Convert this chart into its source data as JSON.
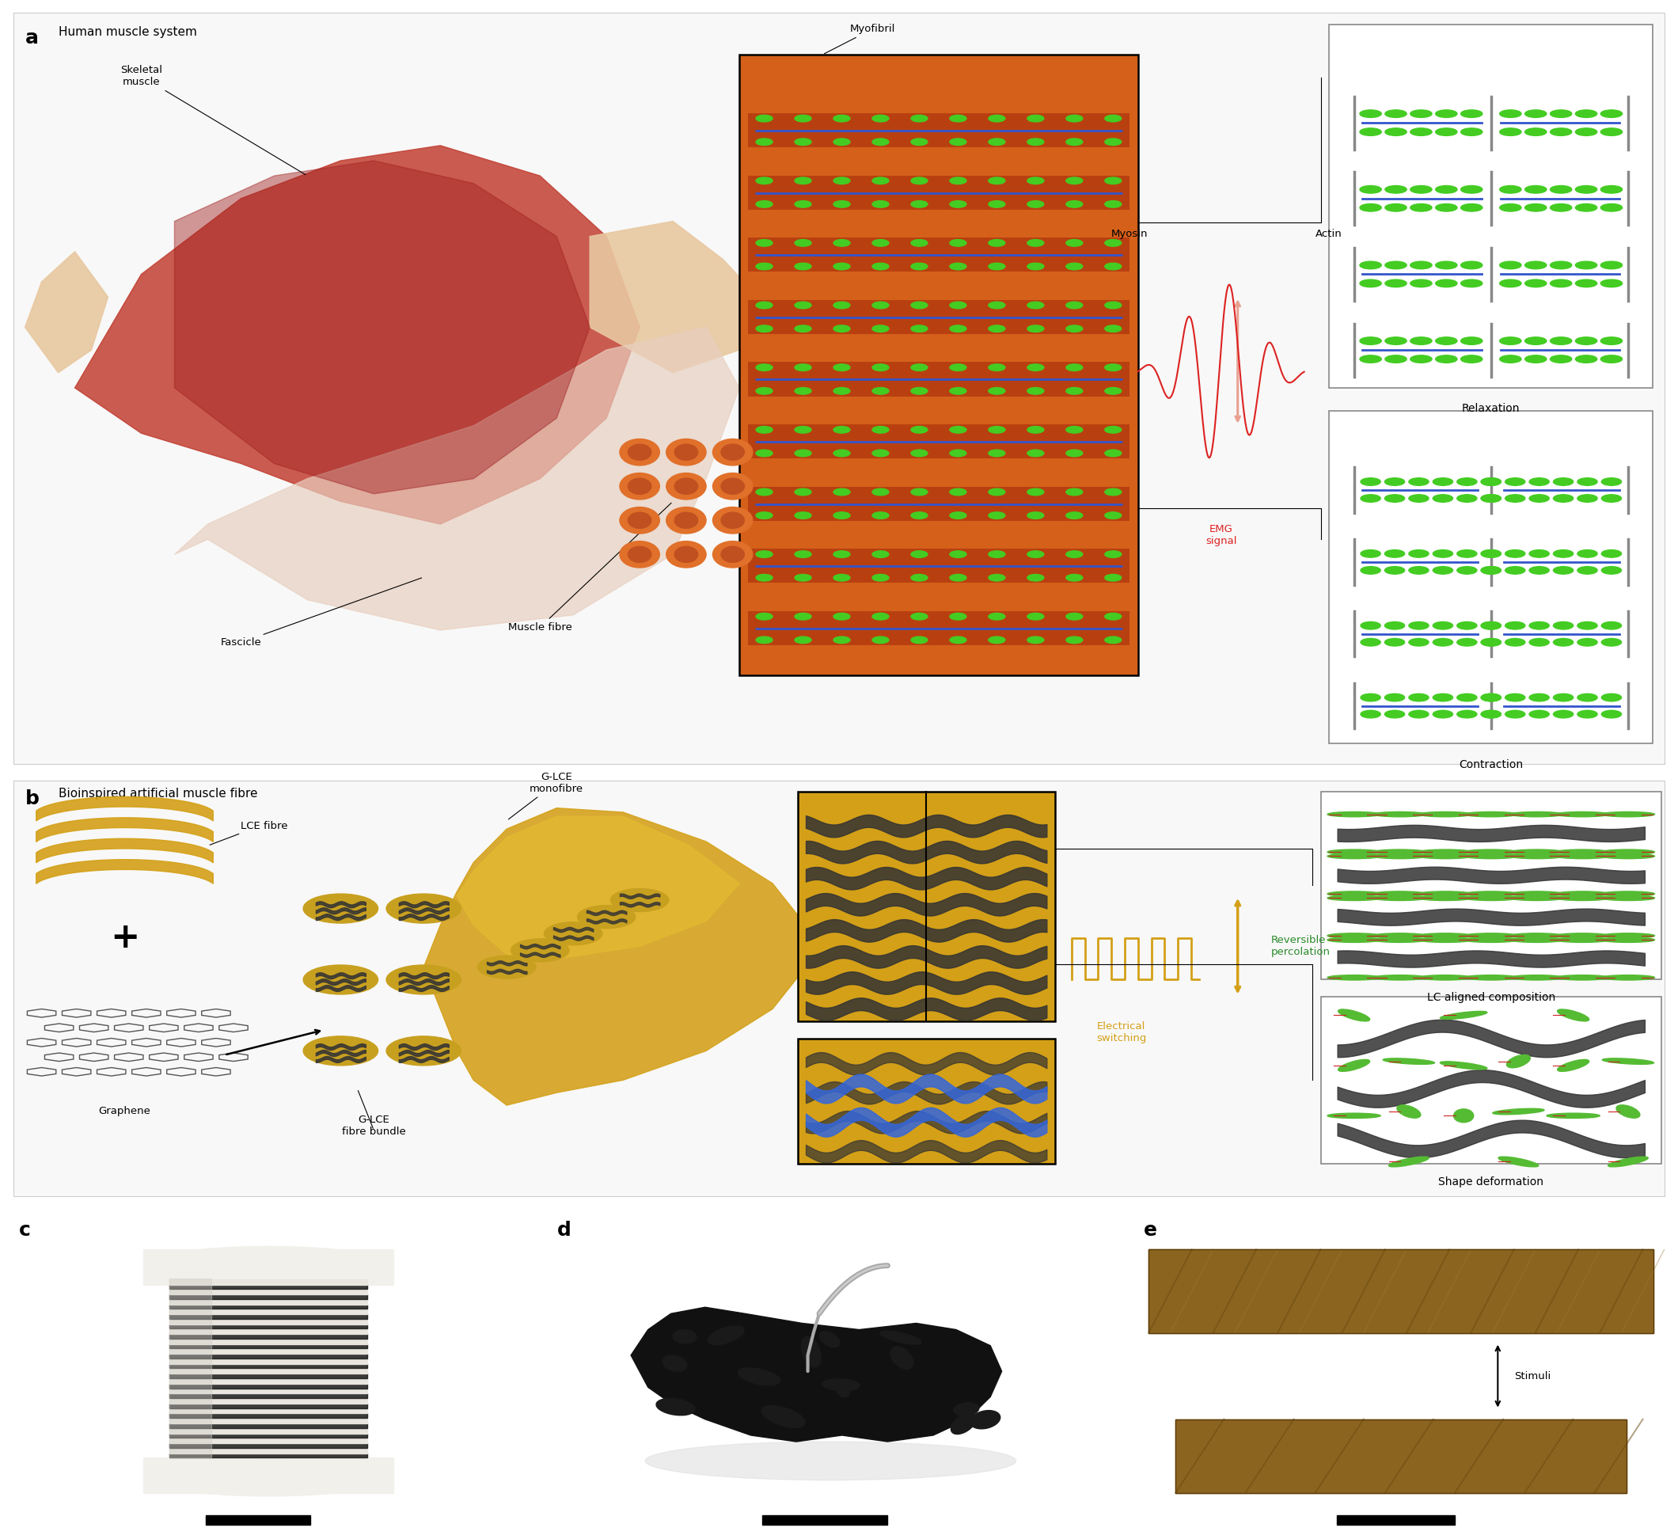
{
  "bg_color": "#ffffff",
  "panel_a_label": "a",
  "panel_b_label": "b",
  "panel_c_label": "c",
  "panel_d_label": "d",
  "panel_e_label": "e",
  "panel_a_title": "Human muscle system",
  "panel_b_title": "Bioinspired artificial muscle fibre",
  "label_skeletal": "Skeletal\nmuscle",
  "label_fascicle": "Fascicle",
  "label_muscle_fibre": "Muscle fibre",
  "label_myofibril": "Myofibril",
  "label_myosin": "Myosin",
  "label_actin": "Actin",
  "label_emg": "EMG\nsignal",
  "label_relaxation": "Relaxation",
  "label_contraction": "Contraction",
  "label_lce_fibre": "LCE fibre",
  "label_graphene": "Graphene",
  "label_glce_monofibre": "G-LCE\nmonofibre",
  "label_glce_bundle": "G-LCE\nfibre bundle",
  "label_electrical": "Electrical\nswitching",
  "label_rev_perc": "Reversible\npercolation",
  "label_lc_aligned": "LC aligned composition",
  "label_shape_deform": "Shape deformation",
  "label_stimuli": "Stimuli",
  "panel_border": "#cccccc",
  "sarcomere_orange": "#d4601a",
  "sarcomere_dark": "#b84010",
  "actin_blue": "#3355cc",
  "myosin_green": "#44cc22",
  "muscle_red": "#c0392b",
  "muscle_dark": "#a93226",
  "tendon_color": "#e8c8a0",
  "fascicle_orange": "#e0702a",
  "zline_gray": "#888888",
  "emg_red": "#dd2222",
  "lce_gold": "#d4a017",
  "glce_gold": "#c8a020",
  "graphene_dark": "#333333",
  "graphene_med": "#555555",
  "lc_green": "#55bb33",
  "lc_red": "#cc2222",
  "electrical_orange": "#d4a017",
  "perc_green": "#2a8a2a",
  "spool_white": "#f2f0eb",
  "spool_black_line": "#1a1a1a",
  "graphene_sponge": "#111111",
  "tweezers_gray": "#aaaaaa",
  "lce_rod_brown": "#8B6520",
  "lce_rod_dark": "#6a4a10",
  "bg_panel": "#f8f8f8",
  "arrow_peach": "#e8a090"
}
